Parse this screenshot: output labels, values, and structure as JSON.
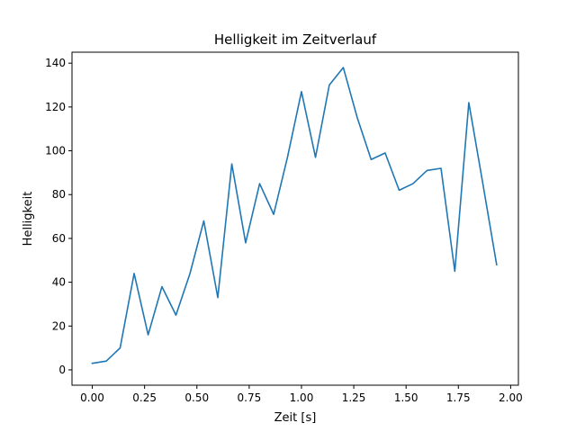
{
  "chart_data": {
    "type": "line",
    "title": "Helligkeit im Zeitverlauf",
    "xlabel": "Zeit [s]",
    "ylabel": "Helligkeit",
    "xlim": [
      -0.097,
      2.037
    ],
    "ylim": [
      -7,
      145
    ],
    "xticks": [
      0.0,
      0.25,
      0.5,
      0.75,
      1.0,
      1.25,
      1.5,
      1.75,
      2.0
    ],
    "xtick_labels": [
      "0.00",
      "0.25",
      "0.50",
      "0.75",
      "1.00",
      "1.25",
      "1.50",
      "1.75",
      "2.00"
    ],
    "yticks": [
      0,
      20,
      40,
      60,
      80,
      100,
      120,
      140
    ],
    "ytick_labels": [
      "0",
      "20",
      "40",
      "60",
      "80",
      "100",
      "120",
      "140"
    ],
    "grid": false,
    "series": [
      {
        "color": "#1f77b4",
        "x": [
          0.0,
          0.067,
          0.133,
          0.2,
          0.267,
          0.333,
          0.4,
          0.467,
          0.533,
          0.6,
          0.667,
          0.733,
          0.8,
          0.867,
          0.933,
          1.0,
          1.067,
          1.133,
          1.2,
          1.267,
          1.333,
          1.4,
          1.467,
          1.533,
          1.6,
          1.667,
          1.733,
          1.8,
          1.867,
          1.933
        ],
        "y": [
          3,
          4,
          10,
          44,
          16,
          38,
          25,
          44,
          68,
          33,
          94,
          58,
          85,
          71,
          97,
          127,
          97,
          130,
          138,
          115,
          96,
          99,
          82,
          85,
          91,
          92,
          45,
          122,
          85,
          48
        ]
      }
    ]
  }
}
